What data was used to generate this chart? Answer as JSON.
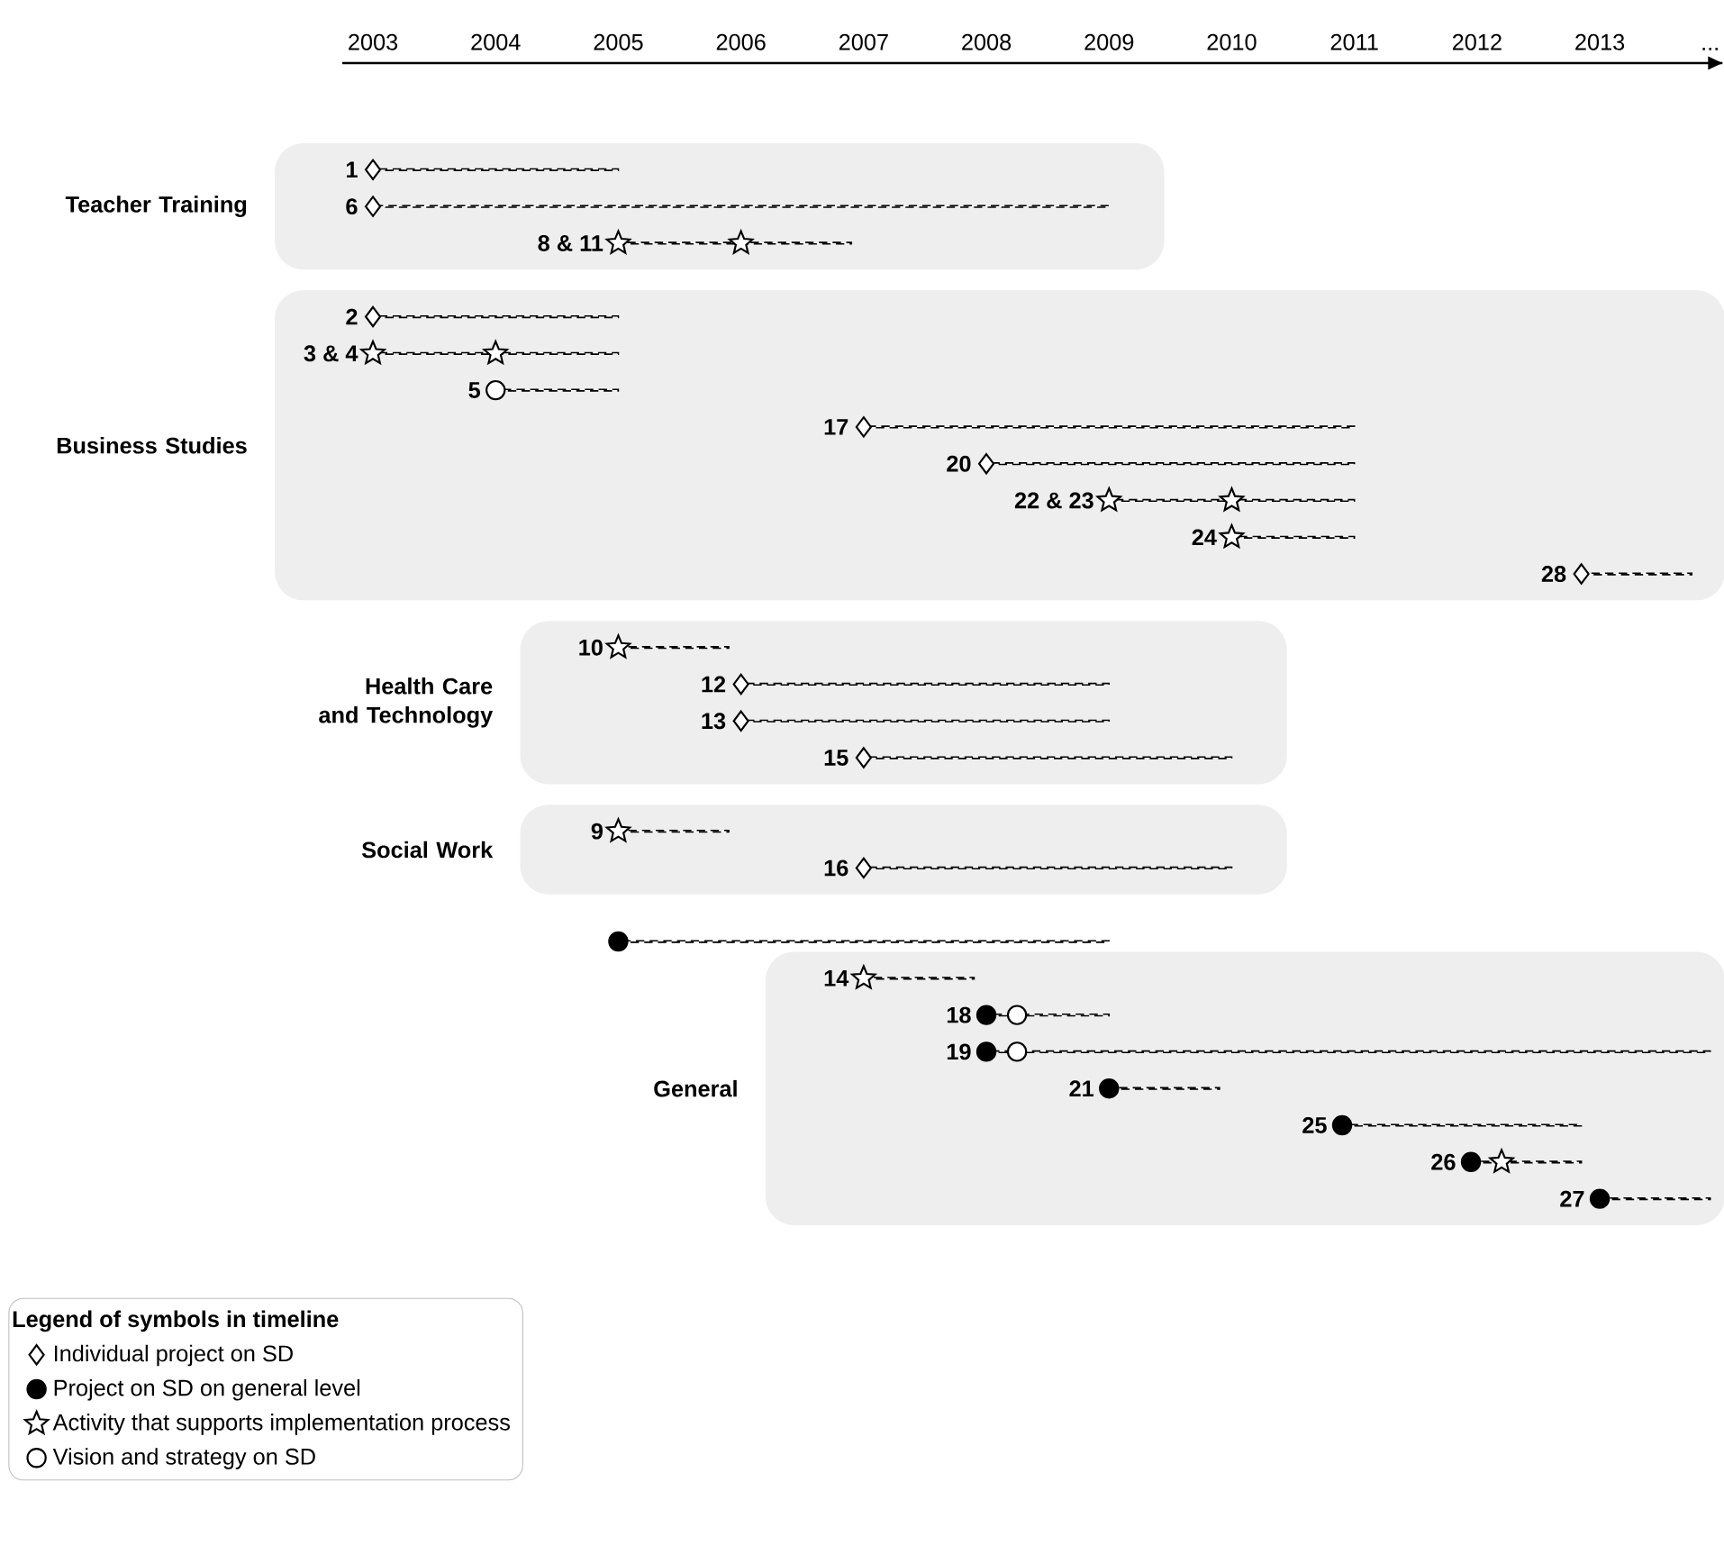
{
  "chart_data": {
    "type": "bar",
    "orientation": "horizontal",
    "line_style": "dashed",
    "categories": [
      "1",
      "6",
      "8 & 11",
      null,
      "2",
      "3 & 4",
      "5",
      "17",
      "20",
      "22 & 23",
      "24",
      "28",
      null,
      "10",
      "12",
      "13",
      "15",
      null,
      "9",
      "16",
      null,
      null,
      "14",
      "18",
      "19",
      "21",
      "25",
      "26",
      "27"
    ],
    "xlim": [
      2002.75,
      2014
    ],
    "xticks": [
      2003,
      2004,
      2005,
      2006,
      2007,
      2008,
      2009,
      2010,
      2011,
      2012,
      2013,
      {
        "value": 2013.9,
        "label": "..."
      }
    ],
    "series": [
      {
        "color": "#000000",
        "base": [
          2003,
          2003,
          2005,
          null,
          2003,
          2003,
          2004,
          2007,
          2008,
          2009,
          2010,
          2012.85,
          null,
          2005,
          2006,
          2006,
          2007,
          null,
          2005,
          2007,
          null,
          2005,
          2007,
          2008,
          2008,
          2009,
          2010.9,
          2011.95,
          2013
        ],
        "values": [
          2,
          6,
          1.9,
          null,
          2,
          2,
          1,
          4,
          3,
          2,
          1,
          0.9,
          null,
          0.9,
          3,
          3,
          3,
          null,
          0.9,
          3,
          null,
          4,
          0.9,
          1,
          5.9,
          0.9,
          1.95,
          0.9,
          0.9
        ]
      },
      {
        "type": "scatter",
        "name": "Individual project on SD",
        "marker": "diamond",
        "color": "#ffffff",
        "values": [
          2003,
          2003,
          null,
          null,
          2003,
          null,
          null,
          2007,
          2008,
          null,
          null,
          2012.85,
          null,
          null,
          2006,
          2006,
          2007,
          null,
          null,
          2007,
          null,
          null,
          null,
          null,
          null,
          null,
          null,
          null,
          null
        ]
      },
      {
        "type": "scatter",
        "name": "Project on SD on general level",
        "marker": "circle",
        "color": "#000000",
        "values": [
          null,
          null,
          null,
          null,
          null,
          null,
          null,
          null,
          null,
          null,
          null,
          null,
          null,
          null,
          null,
          null,
          null,
          null,
          null,
          null,
          null,
          2005,
          null,
          2008,
          2008,
          2009,
          2010.9,
          2011.95,
          2013
        ]
      },
      {
        "type": "scatter",
        "name": "Activity that supports implementation process",
        "marker": "star",
        "color": "#ffffff",
        "x": [
          "8 & 11",
          "8 & 11",
          "3 & 4",
          "3 & 4",
          "22 & 23",
          "22 & 23",
          "24",
          "10",
          "9",
          "14",
          "26"
        ],
        "values": [
          2005,
          2006,
          2003,
          2004,
          2009,
          2010,
          2010,
          2005,
          2005,
          2007,
          2012.2
        ]
      },
      {
        "type": "scatter",
        "name": "Vision and strategy on SD",
        "marker": "circle",
        "color": "#ffffff",
        "values": [
          null,
          null,
          null,
          null,
          null,
          null,
          2004,
          null,
          null,
          null,
          null,
          null,
          null,
          null,
          null,
          null,
          null,
          null,
          null,
          null,
          null,
          null,
          null,
          2008.25,
          2008.25,
          null,
          null,
          null,
          null
        ]
      }
    ],
    "bands": [
      {
        "axis": "y",
        "from": "1",
        "to": "8 & 11",
        "label": "Teacher Training",
        "color": "#eeeeee"
      },
      {
        "axis": "y",
        "from": "2",
        "to": "28",
        "label": "Business Studies",
        "color": "#eeeeee"
      },
      {
        "axis": "y",
        "from": "10",
        "to": "15",
        "label": "Health Care and Technology",
        "color": "#eeeeee"
      },
      {
        "axis": "y",
        "from": "9",
        "to": "16",
        "label": "Social Work",
        "color": "#eeeeee"
      },
      {
        "axis": "y",
        "from": "14",
        "to": "27",
        "label": "General",
        "color": "#eeeeee"
      }
    ],
    "legend": "bottom left",
    "legend_title": "Legend of symbols in timeline"
  }
}
